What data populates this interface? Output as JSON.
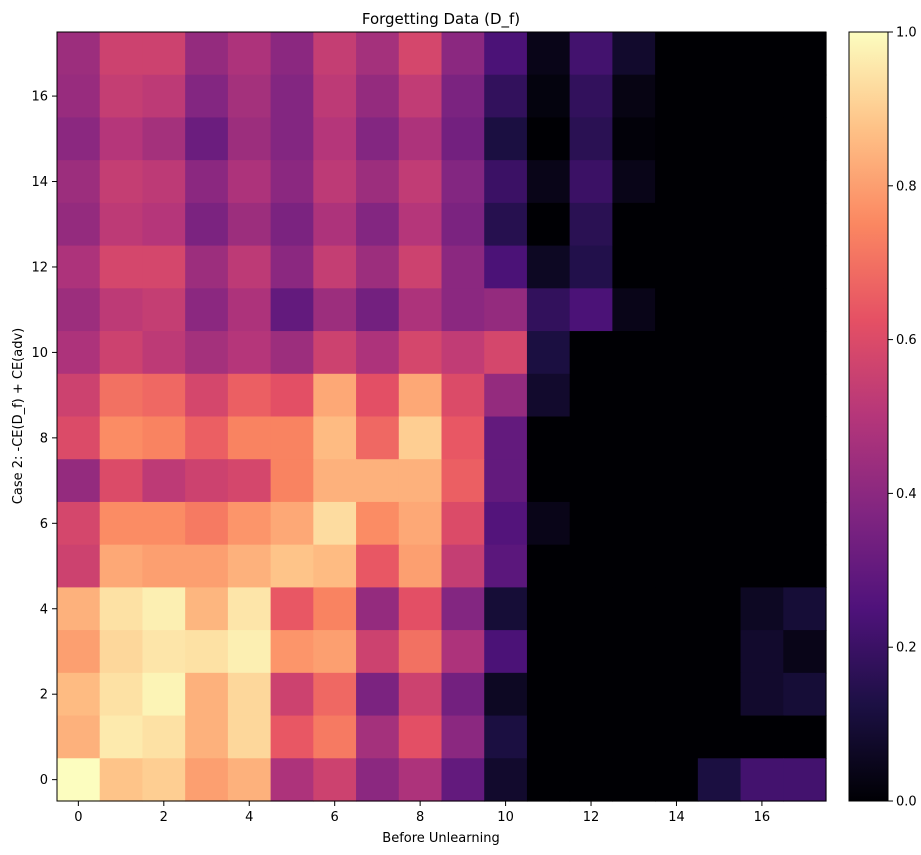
{
  "chart_data": {
    "type": "heatmap",
    "title": "Forgetting Data (D_f)",
    "xlabel": "Before Unlearning",
    "ylabel": "Case 2: -CE(D_f) + CE(adv)",
    "colormap": "magma",
    "xlim": [
      -0.5,
      17.5
    ],
    "ylim": [
      -0.5,
      17.5
    ],
    "xticks": [
      0,
      2,
      4,
      6,
      8,
      10,
      12,
      14,
      16
    ],
    "yticks": [
      0,
      2,
      4,
      6,
      8,
      10,
      12,
      14,
      16
    ],
    "colorbar": {
      "min": 0.0,
      "max": 1.0,
      "ticks": [
        "0.0",
        "0.2",
        "0.4",
        "0.6",
        "0.8",
        "1.0"
      ]
    },
    "rows_top_to_bottom_label": "rows listed from y=17 down to y=0; each row has 18 values for x=0..17",
    "values": [
      [
        0.44,
        0.56,
        0.56,
        0.42,
        0.48,
        0.4,
        0.54,
        0.46,
        0.58,
        0.4,
        0.24,
        0.04,
        0.22,
        0.08,
        0.0,
        0.0,
        0.0,
        0.0
      ],
      [
        0.43,
        0.54,
        0.52,
        0.38,
        0.46,
        0.38,
        0.52,
        0.42,
        0.53,
        0.36,
        0.18,
        0.02,
        0.18,
        0.03,
        0.0,
        0.0,
        0.0,
        0.0
      ],
      [
        0.4,
        0.5,
        0.46,
        0.32,
        0.44,
        0.38,
        0.5,
        0.38,
        0.48,
        0.34,
        0.12,
        0.0,
        0.16,
        0.01,
        0.0,
        0.0,
        0.0,
        0.0
      ],
      [
        0.44,
        0.54,
        0.52,
        0.4,
        0.48,
        0.4,
        0.52,
        0.44,
        0.53,
        0.38,
        0.2,
        0.04,
        0.2,
        0.04,
        0.0,
        0.0,
        0.0,
        0.0
      ],
      [
        0.42,
        0.52,
        0.5,
        0.36,
        0.44,
        0.36,
        0.48,
        0.38,
        0.5,
        0.36,
        0.15,
        0.0,
        0.16,
        0.0,
        0.0,
        0.0,
        0.0,
        0.0
      ],
      [
        0.48,
        0.58,
        0.58,
        0.44,
        0.52,
        0.4,
        0.54,
        0.44,
        0.56,
        0.4,
        0.24,
        0.06,
        0.14,
        0.0,
        0.0,
        0.0,
        0.0,
        0.0
      ],
      [
        0.44,
        0.52,
        0.54,
        0.4,
        0.48,
        0.3,
        0.44,
        0.34,
        0.48,
        0.4,
        0.42,
        0.18,
        0.24,
        0.04,
        0.0,
        0.0,
        0.0,
        0.0
      ],
      [
        0.48,
        0.56,
        0.52,
        0.46,
        0.5,
        0.44,
        0.56,
        0.48,
        0.58,
        0.53,
        0.58,
        0.12,
        0.0,
        0.0,
        0.0,
        0.0,
        0.0,
        0.0
      ],
      [
        0.56,
        0.7,
        0.68,
        0.58,
        0.66,
        0.62,
        0.82,
        0.62,
        0.82,
        0.6,
        0.42,
        0.08,
        0.0,
        0.0,
        0.0,
        0.0,
        0.0,
        0.0
      ],
      [
        0.6,
        0.76,
        0.74,
        0.66,
        0.74,
        0.74,
        0.86,
        0.68,
        0.9,
        0.64,
        0.3,
        0.0,
        0.0,
        0.0,
        0.0,
        0.0,
        0.0,
        0.0
      ],
      [
        0.42,
        0.6,
        0.52,
        0.56,
        0.58,
        0.74,
        0.84,
        0.84,
        0.84,
        0.66,
        0.3,
        0.0,
        0.0,
        0.0,
        0.0,
        0.0,
        0.0,
        0.0
      ],
      [
        0.58,
        0.76,
        0.76,
        0.72,
        0.78,
        0.82,
        0.93,
        0.76,
        0.82,
        0.6,
        0.26,
        0.04,
        0.0,
        0.0,
        0.0,
        0.0,
        0.0,
        0.0
      ],
      [
        0.56,
        0.82,
        0.8,
        0.8,
        0.84,
        0.88,
        0.86,
        0.64,
        0.8,
        0.54,
        0.28,
        0.0,
        0.0,
        0.0,
        0.0,
        0.0,
        0.0,
        0.0
      ],
      [
        0.84,
        0.94,
        0.97,
        0.85,
        0.95,
        0.64,
        0.74,
        0.42,
        0.62,
        0.38,
        0.1,
        0.0,
        0.0,
        0.0,
        0.0,
        0.0,
        0.06,
        0.1
      ],
      [
        0.8,
        0.92,
        0.95,
        0.94,
        0.97,
        0.78,
        0.8,
        0.56,
        0.7,
        0.48,
        0.24,
        0.0,
        0.0,
        0.0,
        0.0,
        0.0,
        0.08,
        0.04
      ],
      [
        0.86,
        0.94,
        0.98,
        0.84,
        0.92,
        0.56,
        0.68,
        0.36,
        0.56,
        0.34,
        0.06,
        0.0,
        0.0,
        0.0,
        0.0,
        0.0,
        0.08,
        0.1
      ],
      [
        0.84,
        0.96,
        0.94,
        0.84,
        0.92,
        0.64,
        0.72,
        0.46,
        0.62,
        0.4,
        0.12,
        0.0,
        0.0,
        0.0,
        0.0,
        0.0,
        0.0,
        0.0
      ],
      [
        1.0,
        0.88,
        0.9,
        0.8,
        0.84,
        0.48,
        0.56,
        0.4,
        0.48,
        0.3,
        0.08,
        0.0,
        0.0,
        0.0,
        0.0,
        0.12,
        0.22,
        0.22
      ]
    ]
  }
}
